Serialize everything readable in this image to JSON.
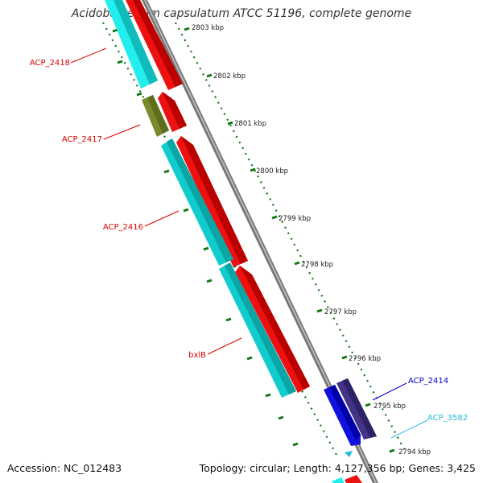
{
  "title": "Acidobacterium capsulatum ATCC 51196, complete genome",
  "accession": "Accession: NC_012483",
  "summary": "Topology: circular; Length: 4,127,356 bp; Genes: 3,425",
  "ruler_labels": [
    "2803 kbp",
    "2802 kbp",
    "2801 kbp",
    "2800 kbp",
    "2799 kbp",
    "2798 kbp",
    "2797 kbp",
    "2796 kbp",
    "2795 kbp",
    "2794 kbp"
  ],
  "genes": [
    {
      "name": "ACP_2418",
      "color": "#dd0000"
    },
    {
      "name": "ACP_2417",
      "color": "#dd0000"
    },
    {
      "name": "ACP_2416",
      "color": "#dd0000"
    },
    {
      "name": "bxlB",
      "color": "#dd0000"
    },
    {
      "name": "ACP_2414",
      "color": "#0000cc"
    },
    {
      "name": "ACP_3582",
      "color": "#22bbdd"
    }
  ],
  "colors": {
    "cds_forward": "#ee1111",
    "cds_reverse_cyan": "#11cccc",
    "cds_olive": "#7a8a2a",
    "cds_blue": "#1111dd",
    "cds_navy": "#443388",
    "backbone": "#888888",
    "tick": "#117711"
  }
}
